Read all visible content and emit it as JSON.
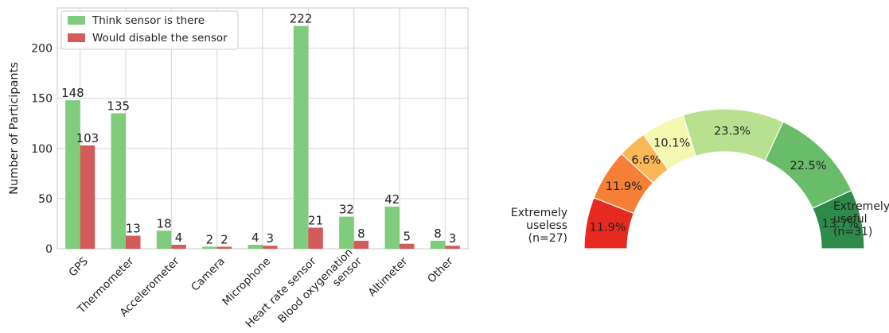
{
  "chart_data": [
    {
      "type": "bar",
      "ylabel": "Number of Participants",
      "ylim": [
        0,
        240
      ],
      "yticks": [
        0,
        50,
        100,
        150,
        200
      ],
      "grid": true,
      "legend_position": "top-left",
      "categories": [
        "GPS",
        "Thermometer",
        "Accelerometer",
        "Camera",
        "Microphone",
        "Heart rate sensor",
        "Blood oxygenation\nsensor",
        "Altimeter",
        "Other"
      ],
      "series": [
        {
          "name": "Think sensor is there",
          "color": "#7fcc7d",
          "values": [
            148,
            135,
            18,
            2,
            4,
            222,
            32,
            42,
            8
          ]
        },
        {
          "name": "Would disable the sensor",
          "color": "#d35b5b",
          "values": [
            103,
            13,
            4,
            2,
            3,
            21,
            8,
            5,
            3
          ]
        }
      ]
    },
    {
      "type": "pie",
      "subtype": "half-donut",
      "slices": [
        {
          "label": "11.9%",
          "value": 11.9,
          "color": "#e8291f"
        },
        {
          "label": "11.9%",
          "value": 11.9,
          "color": "#f57f35"
        },
        {
          "label": "6.6%",
          "value": 6.6,
          "color": "#fbb657"
        },
        {
          "label": "10.1%",
          "value": 10.1,
          "color": "#f5f8b0"
        },
        {
          "label": "23.3%",
          "value": 23.3,
          "color": "#b8e18f"
        },
        {
          "label": "22.5%",
          "value": 22.5,
          "color": "#69bc69"
        },
        {
          "label": "13.7%",
          "value": 13.7,
          "color": "#2d8a49"
        }
      ],
      "left_label": [
        "Extremely",
        "useless",
        "(n=27)"
      ],
      "right_label": [
        "Extremely",
        "useful",
        "(n=31)"
      ]
    }
  ]
}
